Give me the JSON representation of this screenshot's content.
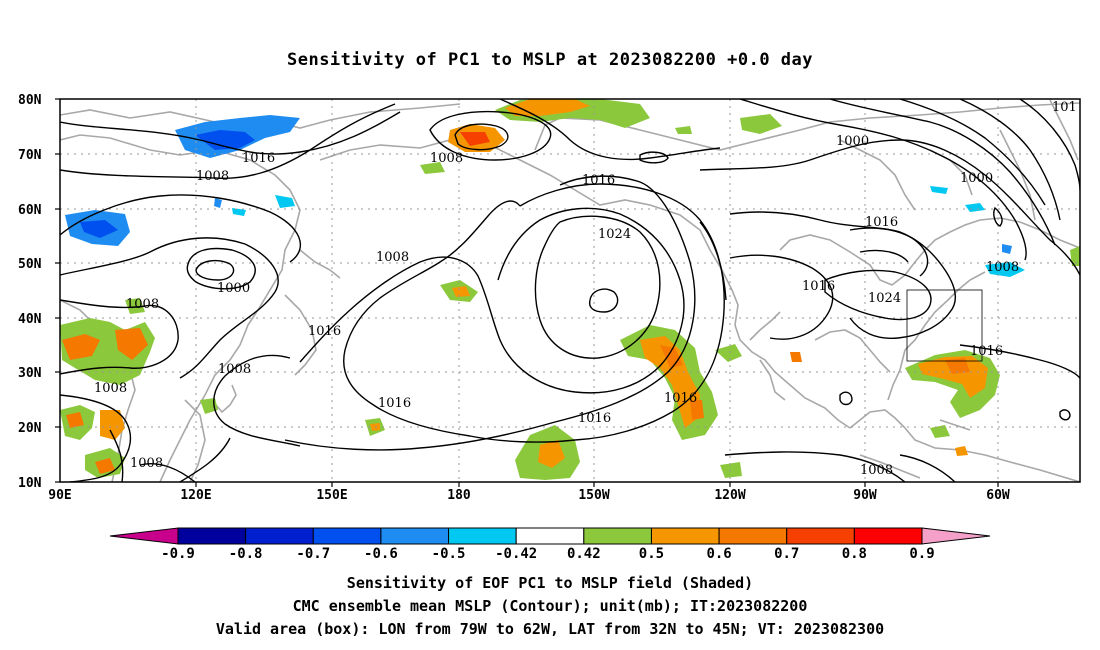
{
  "title": "Sensitivity of PC1 to MSLP at 2023082200 +0.0 day",
  "lat_labels": [
    "80N",
    "70N",
    "60N",
    "50N",
    "40N",
    "30N",
    "20N",
    "10N"
  ],
  "lon_labels": [
    "90E",
    "120E",
    "150E",
    "180",
    "150W",
    "120W",
    "90W",
    "60W"
  ],
  "contour_labels": [
    "1016",
    "1008",
    "1008",
    "1016",
    "1000",
    "1016",
    "1000",
    "1016",
    "1024",
    "1008",
    "1000",
    "1008",
    "1008",
    "1016",
    "1008",
    "1016",
    "1024",
    "1016",
    "1008",
    "1016",
    "1008",
    "1016",
    "101",
    "1008"
  ],
  "colorbar": {
    "ticks": [
      "-0.9",
      "-0.8",
      "-0.7",
      "-0.6",
      "-0.5",
      "-0.42",
      "0.42",
      "0.5",
      "0.6",
      "0.7",
      "0.8",
      "0.9"
    ],
    "colors": [
      "#c8008c",
      "#00009c",
      "#0020d0",
      "#0050f0",
      "#1e8cf0",
      "#00c8f0",
      "#ffffff",
      "#8cc83c",
      "#f59600",
      "#f57800",
      "#f54000",
      "#ff0000",
      "#f5a0c8"
    ]
  },
  "valid_box": {
    "lon_from": "79W",
    "lon_to": "62W",
    "lat_from": "32N",
    "lat_to": "45N"
  },
  "captions": {
    "line1": "Sensitivity of EOF PC1 to MSLP field (Shaded)",
    "line2": "CMC ensemble mean MSLP (Contour); unit(mb); IT:2023082200",
    "line3": "Valid area (box): LON from 79W to 62W, LAT from 32N to 45N; VT: 2023082300"
  }
}
